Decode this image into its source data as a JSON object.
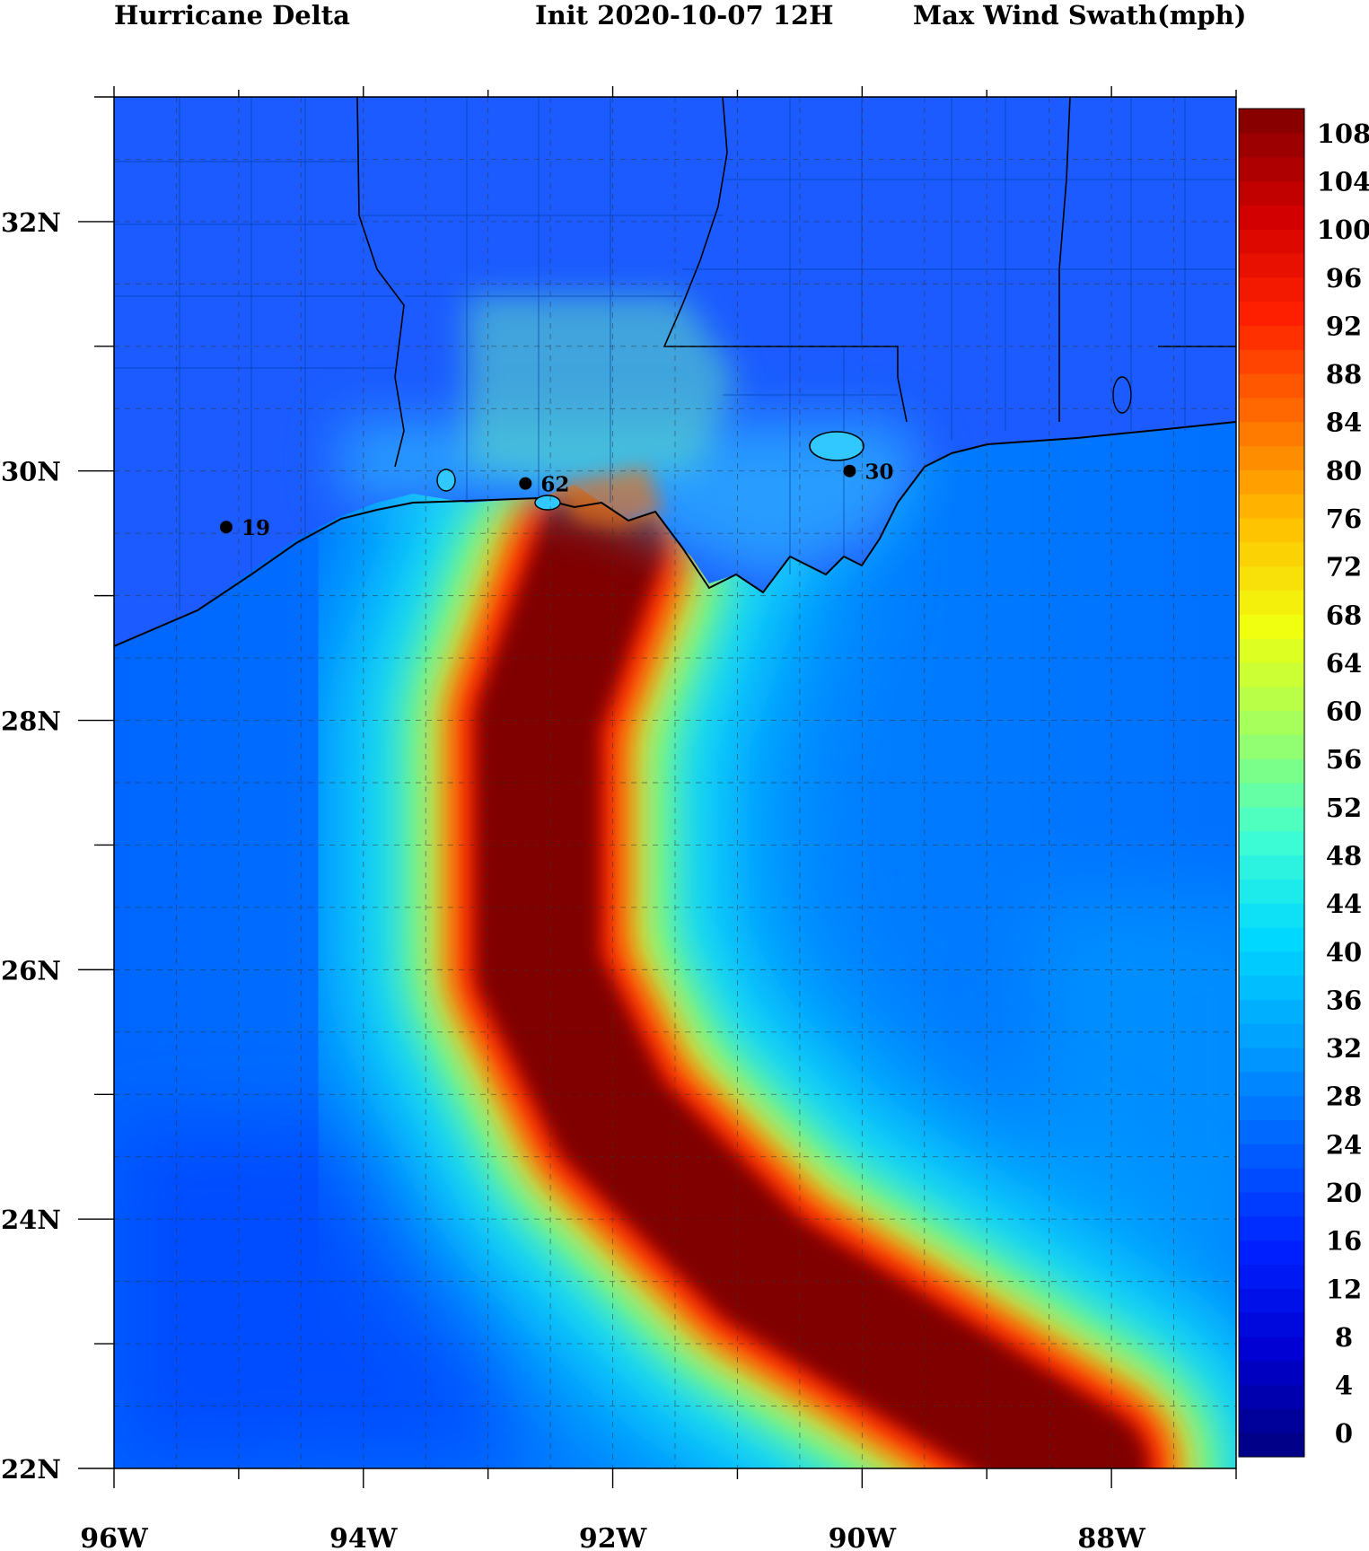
{
  "header": {
    "left": "Hurricane Delta",
    "middle": "Init  2020-10-07 12H",
    "right": "Max Wind Swath(mph)"
  },
  "axes": {
    "x_ticks": [
      "96W",
      "94W",
      "92W",
      "90W",
      "88W"
    ],
    "y_ticks": [
      "32N",
      "30N",
      "28N",
      "26N",
      "24N",
      "22N"
    ],
    "lon_range": [
      -96,
      -87
    ],
    "lat_range": [
      22,
      33
    ]
  },
  "colorbar": {
    "ticks": [
      "108",
      "104",
      "100",
      "96",
      "92",
      "88",
      "84",
      "80",
      "76",
      "72",
      "68",
      "64",
      "60",
      "56",
      "52",
      "48",
      "44",
      "40",
      "36",
      "32",
      "28",
      "24",
      "20",
      "16",
      "12",
      "8",
      "4",
      "0"
    ],
    "range": [
      0,
      112
    ],
    "step": 2,
    "colors": [
      "#00007f",
      "#0000d0",
      "#0020ff",
      "#0060ff",
      "#00a0ff",
      "#00d8ff",
      "#40ffd0",
      "#a0ff60",
      "#f0ff10",
      "#ffc000",
      "#ff7000",
      "#ff2000",
      "#d00000",
      "#800000"
    ]
  },
  "stations": [
    {
      "label": "19",
      "lon": -95.1,
      "lat": 29.55
    },
    {
      "label": "62",
      "lon": -92.7,
      "lat": 29.9
    },
    {
      "label": "30",
      "lon": -90.1,
      "lat": 30.0
    }
  ],
  "chart_data": {
    "type": "heatmap",
    "title": "Max Wind Swath(mph)",
    "units": "mph",
    "track": [
      {
        "lon": -92.1,
        "lat": 29.4
      },
      {
        "lon": -92.6,
        "lat": 28.0
      },
      {
        "lon": -92.6,
        "lat": 26.0
      },
      {
        "lon": -92.0,
        "lat": 24.8
      },
      {
        "lon": -90.8,
        "lat": 23.6
      },
      {
        "lon": -88.2,
        "lat": 22.0
      }
    ],
    "peak_wind": 108
  }
}
